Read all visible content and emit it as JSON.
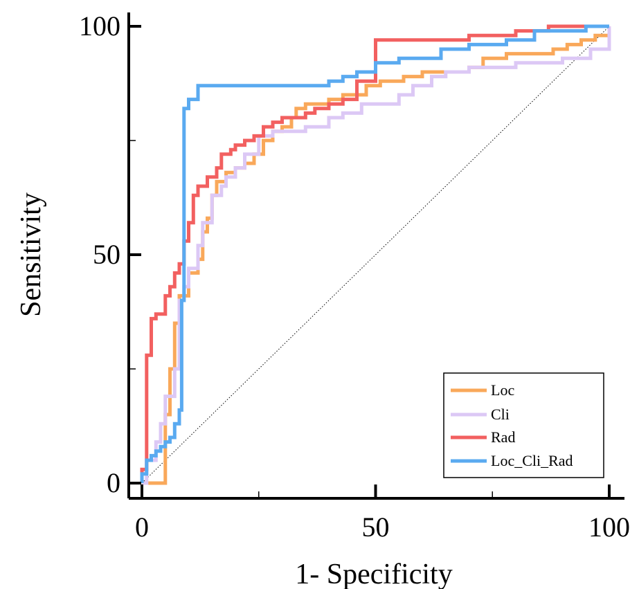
{
  "chart_data": {
    "type": "line",
    "title": "",
    "xlabel": "1- Specificity",
    "ylabel": "Sensitivity",
    "xlim": [
      0,
      100
    ],
    "ylim": [
      0,
      100
    ],
    "x_ticks": [
      0,
      50,
      100
    ],
    "y_ticks": [
      0,
      50,
      100
    ],
    "grid": false,
    "legend_position": "bottom-right",
    "reference_line": {
      "style": "dotted",
      "x": [
        0,
        100
      ],
      "y": [
        0,
        100
      ]
    },
    "series": [
      {
        "name": "Loc",
        "color": "#f9a85a",
        "x": [
          0,
          5,
          5,
          6,
          6,
          7,
          7,
          8,
          8,
          10,
          10,
          12,
          12,
          13,
          13,
          14,
          14,
          15,
          15,
          16,
          16,
          18,
          18,
          20,
          20,
          22,
          22,
          24,
          24,
          26,
          26,
          28,
          28,
          30,
          30,
          32,
          32,
          33,
          33,
          35,
          35,
          40,
          40,
          43,
          43,
          48,
          48,
          51,
          51,
          56,
          56,
          60,
          60,
          65,
          65,
          70,
          70,
          73,
          73,
          78,
          78,
          88,
          88,
          91,
          91,
          94,
          94,
          97,
          97,
          100,
          100
        ],
        "y": [
          0,
          0,
          15,
          15,
          25,
          25,
          35,
          35,
          41,
          41,
          46,
          46,
          49,
          49,
          55,
          55,
          58,
          58,
          63,
          63,
          66,
          66,
          68,
          68,
          69,
          69,
          70,
          70,
          72,
          72,
          75,
          75,
          77,
          77,
          78,
          78,
          80,
          80,
          82,
          82,
          83,
          83,
          84,
          84,
          85,
          85,
          87,
          87,
          88,
          88,
          89,
          89,
          90,
          90,
          90,
          90,
          91,
          91,
          93,
          93,
          94,
          94,
          95,
          95,
          96,
          96,
          97,
          97,
          98,
          98,
          100
        ]
      },
      {
        "name": "Cli",
        "color": "#dcc8f5",
        "x": [
          0,
          1,
          1,
          3,
          3,
          4,
          4,
          5,
          5,
          7,
          7,
          8,
          8,
          9,
          9,
          10,
          10,
          12,
          12,
          13,
          13,
          15,
          15,
          17,
          17,
          18,
          18,
          20,
          20,
          22,
          22,
          25,
          25,
          28,
          28,
          35,
          35,
          40,
          40,
          43,
          43,
          47,
          47,
          55,
          55,
          58,
          58,
          62,
          62,
          65,
          65,
          70,
          70,
          80,
          80,
          90,
          90,
          96,
          96,
          100,
          100
        ],
        "y": [
          0,
          0,
          5,
          5,
          9,
          9,
          13,
          13,
          19,
          19,
          25,
          25,
          40,
          40,
          43,
          43,
          47,
          47,
          52,
          52,
          57,
          57,
          63,
          63,
          65,
          65,
          67,
          67,
          69,
          69,
          72,
          72,
          76,
          76,
          77,
          77,
          78,
          78,
          80,
          80,
          81,
          81,
          83,
          83,
          85,
          85,
          87,
          87,
          89,
          89,
          90,
          90,
          91,
          91,
          92,
          92,
          93,
          93,
          95,
          95,
          100
        ]
      },
      {
        "name": "Rad",
        "color": "#f26060",
        "x": [
          0,
          0,
          1,
          1,
          2,
          2,
          3,
          3,
          5,
          5,
          6,
          6,
          7,
          7,
          8,
          8,
          9,
          9,
          10,
          10,
          11,
          11,
          12,
          12,
          14,
          14,
          16,
          16,
          17,
          17,
          19,
          19,
          20,
          20,
          22,
          22,
          24,
          24,
          26,
          26,
          28,
          28,
          30,
          30,
          35,
          35,
          37,
          37,
          40,
          40,
          43,
          43,
          46,
          46,
          50,
          50,
          60,
          60,
          70,
          70,
          80,
          80,
          87,
          87,
          95,
          95,
          100
        ],
        "y": [
          0,
          3,
          3,
          28,
          28,
          36,
          36,
          37,
          37,
          41,
          41,
          43,
          43,
          46,
          46,
          48,
          48,
          53,
          53,
          57,
          57,
          63,
          63,
          65,
          65,
          67,
          67,
          69,
          69,
          72,
          72,
          73,
          73,
          74,
          74,
          75,
          75,
          76,
          76,
          78,
          78,
          79,
          79,
          80,
          80,
          81,
          81,
          82,
          82,
          83,
          83,
          84,
          84,
          88,
          88,
          97,
          97,
          97,
          97,
          98,
          98,
          99,
          99,
          100,
          100,
          100,
          100
        ]
      },
      {
        "name": "Loc_Cli_Rad",
        "color": "#5aaaf0",
        "x": [
          0,
          0,
          1,
          1,
          2,
          2,
          3,
          3,
          4,
          4,
          5,
          5,
          6,
          6,
          7,
          7,
          8,
          8,
          8.5,
          8.5,
          9,
          9,
          10,
          10,
          12,
          12,
          20,
          20,
          40,
          40,
          43,
          43,
          46,
          46,
          50,
          50,
          55,
          55,
          64,
          64,
          70,
          70,
          78,
          78,
          84,
          84,
          90,
          90,
          95,
          95,
          100,
          100
        ],
        "y": [
          0,
          2,
          2,
          5,
          5,
          6,
          6,
          7,
          7,
          8,
          8,
          9,
          9,
          10,
          10,
          13,
          13,
          16,
          16,
          40,
          40,
          82,
          82,
          84,
          84,
          87,
          87,
          87,
          87,
          88,
          88,
          89,
          89,
          90,
          90,
          92,
          92,
          93,
          93,
          95,
          95,
          96,
          96,
          97,
          97,
          99,
          99,
          99,
          99,
          100,
          100,
          100
        ]
      }
    ]
  }
}
